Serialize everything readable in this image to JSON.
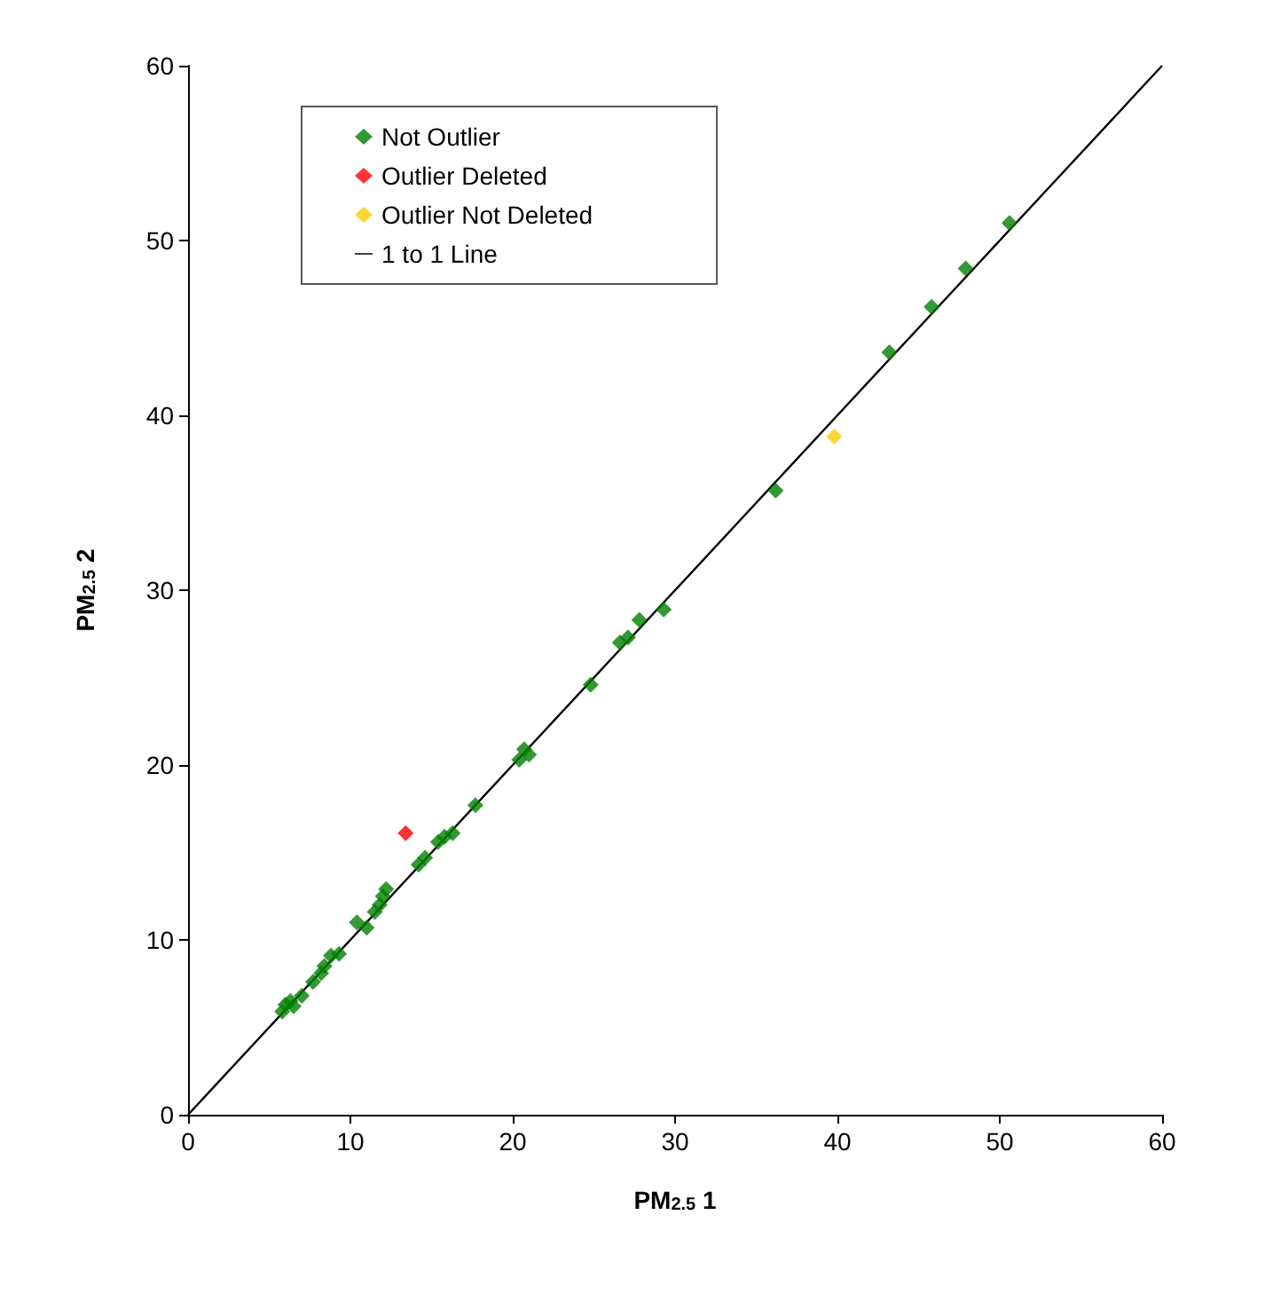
{
  "chart_data": {
    "type": "scatter",
    "xlabel": "PM$_{2.5}$ 1",
    "ylabel": "PM$_{2.5}$ 2",
    "xlim": [
      0,
      60
    ],
    "ylim": [
      0,
      60
    ],
    "xticks": [
      0,
      10,
      20,
      30,
      40,
      50,
      60
    ],
    "yticks": [
      0,
      10,
      20,
      30,
      40,
      50,
      60
    ],
    "grid": false,
    "legend": "top left",
    "marker": "diamond",
    "series": [
      {
        "name": "Not Outlier",
        "color": "#008000",
        "x": [
          5.8,
          6,
          6.3,
          6.5,
          7,
          7.7,
          8.2,
          8.4,
          8.8,
          9.3,
          10.4,
          11,
          11.5,
          11.8,
          12,
          12.2,
          14.2,
          14.6,
          15.4,
          15.8,
          16.3,
          17.7,
          20.4,
          20.7,
          21,
          24.8,
          26.6,
          27.1,
          27.8,
          29.3,
          36.2,
          43.2,
          45.8,
          47.9,
          50.6
        ],
        "values": [
          5.9,
          6.3,
          6.5,
          6.2,
          6.8,
          7.6,
          8.1,
          8.5,
          9.1,
          9.2,
          11,
          10.7,
          11.6,
          12,
          12.5,
          12.9,
          14.3,
          14.7,
          15.6,
          15.9,
          16.1,
          17.7,
          20.3,
          20.9,
          20.6,
          24.6,
          27,
          27.3,
          28.3,
          28.9,
          35.7,
          43.6,
          46.2,
          48.4,
          51
        ]
      },
      {
        "name": "Outlier Deleted",
        "color": "#ff0000",
        "x": [
          13.4
        ],
        "values": [
          16.1
        ]
      },
      {
        "name": "Outlier Not Deleted",
        "color": "#ffcc00",
        "x": [
          39.8
        ],
        "values": [
          38.8
        ]
      },
      {
        "name": "1 to 1 Line",
        "type": "line",
        "color": "#000000",
        "marker": "none",
        "line_style": "solid",
        "x": [
          0,
          60
        ],
        "values": [
          0,
          60
        ]
      }
    ]
  }
}
